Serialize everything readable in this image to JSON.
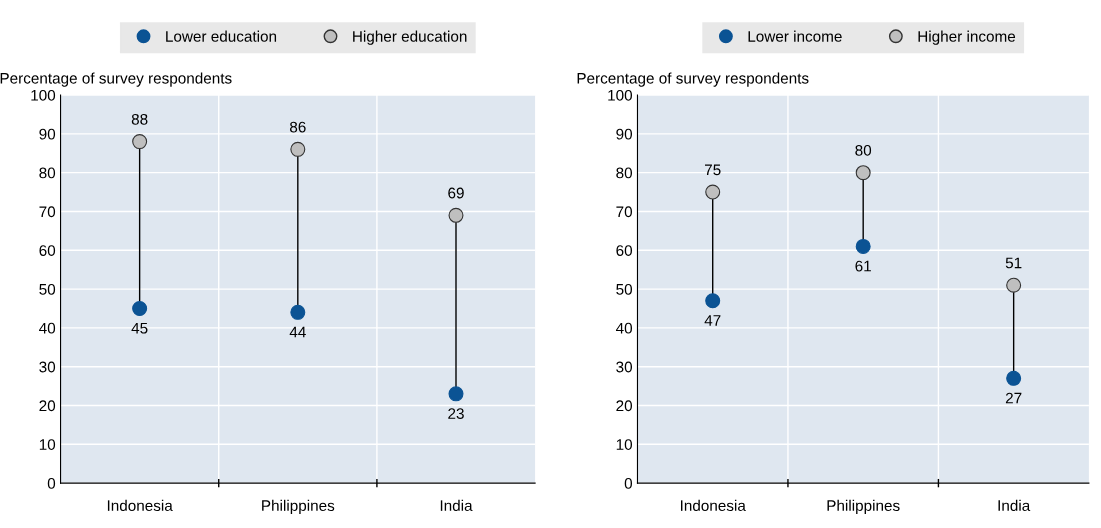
{
  "chart_data": [
    {
      "type": "scatter",
      "ylabel": "Percentage of survey respondents",
      "categories": [
        "Indonesia",
        "Philippines",
        "India"
      ],
      "ylim": [
        0,
        100
      ],
      "yticks": [
        0,
        10,
        20,
        30,
        40,
        50,
        60,
        70,
        80,
        90,
        100
      ],
      "grid": true,
      "legend": "top",
      "marker": "circle",
      "data_labels": true,
      "series": [
        {
          "name": "Lower education",
          "color": "#0b5394",
          "values": [
            45,
            44,
            23
          ]
        },
        {
          "name": "Higher education",
          "color": "#bfbfbf",
          "values": [
            88,
            86,
            69
          ]
        }
      ]
    },
    {
      "type": "scatter",
      "ylabel": "Percentage of survey respondents",
      "categories": [
        "Indonesia",
        "Philippines",
        "India"
      ],
      "ylim": [
        0,
        100
      ],
      "yticks": [
        0,
        10,
        20,
        30,
        40,
        50,
        60,
        70,
        80,
        90,
        100
      ],
      "grid": true,
      "legend": "top",
      "marker": "circle",
      "data_labels": true,
      "series": [
        {
          "name": "Lower income",
          "color": "#0b5394",
          "values": [
            47,
            61,
            27
          ]
        },
        {
          "name": "Higher income",
          "color": "#bfbfbf",
          "values": [
            75,
            80,
            51
          ]
        }
      ]
    }
  ]
}
